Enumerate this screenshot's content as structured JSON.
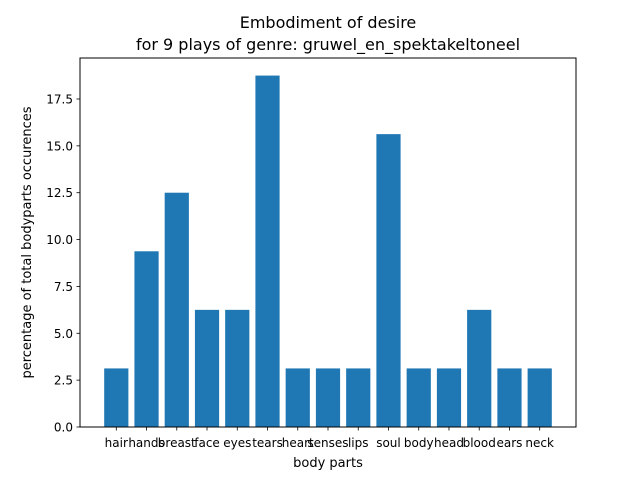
{
  "chart_data": {
    "type": "bar",
    "title": "Embodiment of desire",
    "subtitle": "for 9 plays of genre: gruwel_en_spektakeltoneel",
    "xlabel": "body parts",
    "ylabel": "percentage of total bodyparts occurences",
    "categories": [
      "hair",
      "hands",
      "breast",
      "face",
      "eyes",
      "tears",
      "heart",
      "senses",
      "lips",
      "soul",
      "body",
      "head",
      "blood",
      "ears",
      "neck"
    ],
    "values": [
      3.125,
      9.375,
      12.5,
      6.25,
      6.25,
      18.75,
      3.125,
      3.125,
      3.125,
      15.625,
      3.125,
      3.125,
      6.25,
      3.125,
      3.125
    ],
    "ylim": [
      0,
      19.6875
    ],
    "yticks": [
      0.0,
      2.5,
      5.0,
      7.5,
      10.0,
      12.5,
      15.0,
      17.5
    ],
    "ytick_labels": [
      "0.0",
      "2.5",
      "5.0",
      "7.5",
      "10.0",
      "12.5",
      "15.0",
      "17.5"
    ],
    "grid": false,
    "bar_color": "#1f77b4"
  }
}
